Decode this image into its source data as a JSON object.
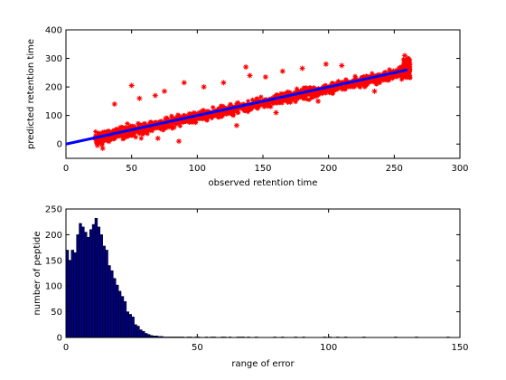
{
  "chart_data": [
    {
      "type": "scatter",
      "title": "",
      "xlabel": "observed retention time",
      "ylabel": "predicted retention time",
      "xlim": [
        0,
        300
      ],
      "ylim": [
        -50,
        400
      ],
      "xticks": [
        0,
        50,
        100,
        150,
        200,
        250,
        300
      ],
      "yticks": [
        0,
        100,
        200,
        300,
        400
      ],
      "grid": false,
      "marker": "*",
      "colors": {
        "points": "#ff0000",
        "fit_line": "#0000ff"
      },
      "series": [
        {
          "type": "scatter",
          "x_range": [
            22,
            262
          ],
          "trend": {
            "slope": 1.0,
            "intercept": 0
          },
          "spread_band": 20,
          "outliers": [
            {
              "x": 37,
              "y": 140
            },
            {
              "x": 50,
              "y": 205
            },
            {
              "x": 56,
              "y": 160
            },
            {
              "x": 68,
              "y": 170
            },
            {
              "x": 75,
              "y": 185
            },
            {
              "x": 90,
              "y": 215
            },
            {
              "x": 105,
              "y": 200
            },
            {
              "x": 120,
              "y": 215
            },
            {
              "x": 137,
              "y": 270
            },
            {
              "x": 140,
              "y": 240
            },
            {
              "x": 152,
              "y": 235
            },
            {
              "x": 165,
              "y": 255
            },
            {
              "x": 180,
              "y": 265
            },
            {
              "x": 198,
              "y": 280
            },
            {
              "x": 210,
              "y": 275
            },
            {
              "x": 86,
              "y": 10
            },
            {
              "x": 70,
              "y": 20
            },
            {
              "x": 130,
              "y": 65
            },
            {
              "x": 160,
              "y": 110
            },
            {
              "x": 192,
              "y": 150
            },
            {
              "x": 224,
              "y": 200
            },
            {
              "x": 235,
              "y": 185
            },
            {
              "x": 28,
              "y": -15
            },
            {
              "x": 24,
              "y": -5
            },
            {
              "x": 258,
              "y": 310
            },
            {
              "x": 260,
              "y": 300
            }
          ]
        },
        {
          "type": "line",
          "x": [
            0,
            260
          ],
          "y": [
            0,
            260
          ]
        }
      ]
    },
    {
      "type": "bar",
      "title": "",
      "xlabel": "range of error",
      "ylabel": "number of peptide",
      "xlim": [
        0,
        150
      ],
      "ylim": [
        0,
        250
      ],
      "xticks": [
        0,
        50,
        100,
        150
      ],
      "yticks": [
        0,
        50,
        100,
        150,
        200,
        250
      ],
      "grid": false,
      "colors": {
        "bars": "#000080",
        "edge": "#000000"
      },
      "bin_width": 1.0,
      "bins_start": 0,
      "values": [
        170,
        150,
        170,
        165,
        200,
        222,
        215,
        205,
        195,
        210,
        220,
        232,
        215,
        200,
        178,
        170,
        140,
        130,
        115,
        102,
        90,
        80,
        70,
        50,
        45,
        40,
        25,
        22,
        15,
        12,
        8,
        6,
        4,
        3,
        3,
        2,
        2,
        1,
        1,
        1,
        1,
        1,
        1,
        1,
        1,
        0,
        1,
        1,
        0,
        1,
        1,
        0,
        0,
        1,
        0,
        1,
        1,
        0,
        0,
        1,
        1,
        0,
        1,
        0,
        0,
        1,
        1,
        1,
        0,
        1,
        0,
        0,
        1,
        0,
        0,
        0,
        0,
        0,
        0,
        1,
        0,
        0,
        1,
        0,
        0,
        0,
        0,
        1,
        0,
        0,
        1,
        0,
        0,
        0,
        0,
        0,
        0,
        0,
        1,
        0,
        1,
        0,
        0,
        1,
        0,
        0,
        1,
        0,
        0,
        0,
        0,
        0,
        0,
        1,
        0,
        0,
        0,
        0,
        0,
        0,
        0,
        0,
        0,
        0,
        0,
        1,
        0,
        0,
        0,
        0,
        0,
        0,
        0,
        1,
        0,
        0,
        0,
        0,
        0,
        0,
        0,
        0,
        0,
        0,
        0,
        1,
        0,
        0,
        0,
        0
      ]
    }
  ]
}
